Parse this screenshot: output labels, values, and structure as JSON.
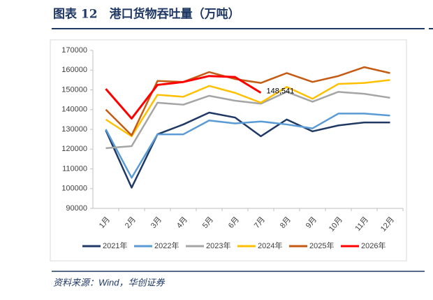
{
  "chart_data": {
    "type": "line",
    "title": "图表 12　港口货物吞吐量（万吨）",
    "source": "资料来源：Wind，华创证券",
    "categories": [
      "1月",
      "2月",
      "3月",
      "4月",
      "5月",
      "6月",
      "7月",
      "8月",
      "9月",
      "10月",
      "11月",
      "12月"
    ],
    "series": [
      {
        "name": "2021年",
        "color": "#1f3864",
        "values": [
          129500,
          100500,
          127500,
          132500,
          138500,
          136000,
          126500,
          135000,
          129000,
          132000,
          133500,
          133500
        ]
      },
      {
        "name": "2022年",
        "color": "#5b9bd5",
        "values": [
          130000,
          105500,
          127500,
          127500,
          134500,
          133000,
          134000,
          132500,
          130500,
          138000,
          138000,
          137000
        ]
      },
      {
        "name": "2023年",
        "color": "#a5a5a5",
        "values": [
          120500,
          121500,
          143500,
          142500,
          147000,
          144500,
          143000,
          149000,
          144000,
          149000,
          148000,
          146000
        ]
      },
      {
        "name": "2024年",
        "color": "#ffc000",
        "values": [
          135000,
          126500,
          147500,
          146500,
          152000,
          148500,
          143500,
          151500,
          145500,
          153000,
          153500,
          155000
        ]
      },
      {
        "name": "2025年",
        "color": "#c55a11",
        "values": [
          140000,
          127000,
          154500,
          154000,
          159000,
          155500,
          153500,
          158500,
          154000,
          157000,
          161500,
          158500
        ]
      },
      {
        "name": "2026年",
        "color": "#ff0000",
        "values": [
          150500,
          135500,
          152500,
          154000,
          157000,
          156500,
          148541,
          null,
          null,
          null,
          null,
          null
        ],
        "value_labels": [
          null,
          null,
          null,
          null,
          null,
          null,
          "148,541",
          null,
          null,
          null,
          null,
          null
        ]
      }
    ],
    "ylim": [
      90000,
      170000
    ],
    "yticks": [
      90000,
      100000,
      110000,
      120000,
      130000,
      140000,
      150000,
      160000,
      170000
    ],
    "legend": "bottom"
  }
}
